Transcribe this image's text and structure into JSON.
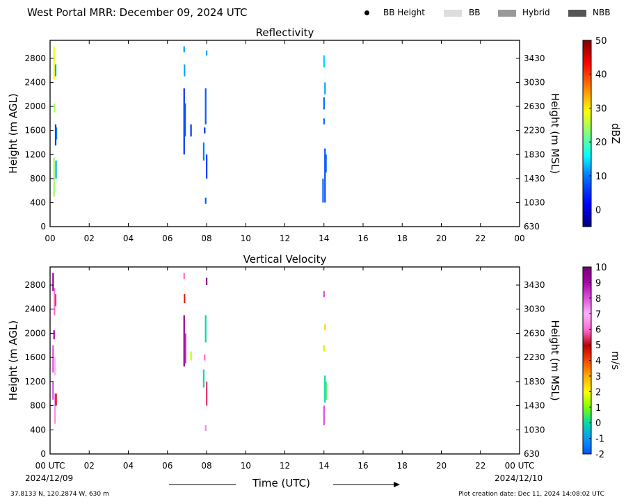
{
  "header": {
    "title": "West Portal MRR:  December 09, 2024 UTC"
  },
  "legend": {
    "items": [
      {
        "label": "BB Height",
        "icon": "black-dot",
        "color": "#000000"
      },
      {
        "label": "BB",
        "icon": "swatch",
        "color": "#dddddd"
      },
      {
        "label": "Hybrid",
        "icon": "swatch",
        "color": "#999999"
      },
      {
        "label": "NBB",
        "icon": "swatch",
        "color": "#555555"
      }
    ]
  },
  "chart_data": [
    {
      "type": "heatmap",
      "title": "Reflectivity",
      "ylabel": "Height (m AGL)",
      "y2label": "Height (m MSL)",
      "xlim": [
        0,
        24
      ],
      "ylim": [
        0,
        3100
      ],
      "x_ticks": [
        "00",
        "02",
        "04",
        "06",
        "08",
        "10",
        "12",
        "14",
        "16",
        "18",
        "20",
        "22",
        "00"
      ],
      "y_ticks": [
        "0",
        "400",
        "800",
        "1200",
        "1600",
        "2000",
        "2400",
        "2800"
      ],
      "y2_ticks": [
        "630",
        "1030",
        "1430",
        "1830",
        "2230",
        "2630",
        "3030",
        "3430"
      ],
      "colorbar": {
        "label": "dBZ",
        "range": [
          -5,
          50
        ],
        "ticks": [
          "0",
          "10",
          "20",
          "30",
          "40",
          "50"
        ]
      },
      "streaks": [
        {
          "x": 0.2,
          "y0": 2450,
          "y1": 3000,
          "value": 28
        },
        {
          "x": 0.28,
          "y0": 2500,
          "y1": 2700,
          "value": 12
        },
        {
          "x": 0.22,
          "y0": 1900,
          "y1": 2050,
          "value": 24
        },
        {
          "x": 0.28,
          "y0": 1350,
          "y1": 1700,
          "value": 5
        },
        {
          "x": 0.32,
          "y0": 1450,
          "y1": 1650,
          "value": 10
        },
        {
          "x": 0.2,
          "y0": 500,
          "y1": 1150,
          "value": 24
        },
        {
          "x": 0.3,
          "y0": 800,
          "y1": 1100,
          "value": 12
        },
        {
          "x": 6.85,
          "y0": 2900,
          "y1": 3000,
          "value": 12
        },
        {
          "x": 6.87,
          "y0": 2500,
          "y1": 2700,
          "value": 12
        },
        {
          "x": 6.85,
          "y0": 1200,
          "y1": 2300,
          "value": 5
        },
        {
          "x": 6.9,
          "y0": 1500,
          "y1": 2050,
          "value": 8
        },
        {
          "x": 7.2,
          "y0": 1500,
          "y1": 1700,
          "value": 5
        },
        {
          "x": 7.85,
          "y0": 1100,
          "y1": 1400,
          "value": 10
        },
        {
          "x": 7.9,
          "y0": 1550,
          "y1": 1650,
          "value": 5
        },
        {
          "x": 7.95,
          "y0": 1700,
          "y1": 2300,
          "value": 8
        },
        {
          "x": 8.0,
          "y0": 800,
          "y1": 1200,
          "value": 6
        },
        {
          "x": 7.95,
          "y0": 380,
          "y1": 480,
          "value": 8
        },
        {
          "x": 8.0,
          "y0": 2850,
          "y1": 2930,
          "value": 12
        },
        {
          "x": 14.0,
          "y0": 2650,
          "y1": 2850,
          "value": 14
        },
        {
          "x": 14.05,
          "y0": 2200,
          "y1": 2400,
          "value": 12
        },
        {
          "x": 14.0,
          "y0": 1950,
          "y1": 2150,
          "value": 9
        },
        {
          "x": 14.0,
          "y0": 1700,
          "y1": 1800,
          "value": 9
        },
        {
          "x": 13.95,
          "y0": 400,
          "y1": 800,
          "value": 8
        },
        {
          "x": 14.05,
          "y0": 400,
          "y1": 1300,
          "value": 7
        },
        {
          "x": 14.1,
          "y0": 900,
          "y1": 1200,
          "value": 9
        }
      ]
    },
    {
      "type": "heatmap",
      "title": "Vertical Velocity",
      "ylabel": "Height (m AGL)",
      "y2label": "Height (m MSL)",
      "xlim": [
        0,
        24
      ],
      "ylim": [
        0,
        3100
      ],
      "x_ticks": [
        "00 UTC",
        "02",
        "04",
        "06",
        "08",
        "10",
        "12",
        "14",
        "16",
        "18",
        "20",
        "22",
        "00 UTC"
      ],
      "y_ticks": [
        "0",
        "400",
        "800",
        "1200",
        "1600",
        "2000",
        "2400",
        "2800"
      ],
      "y2_ticks": [
        "630",
        "1030",
        "1430",
        "1830",
        "2230",
        "2630",
        "3030",
        "3430"
      ],
      "colorbar": {
        "label": "m/s",
        "range": [
          -2,
          10
        ],
        "ticks": [
          "-2",
          "-1",
          "0",
          "1",
          "2",
          "3",
          "4",
          "5",
          "6",
          "7",
          "8",
          "9",
          "10"
        ]
      },
      "streaks": [
        {
          "x": 0.15,
          "y0": 2700,
          "y1": 3000,
          "value": 9.5
        },
        {
          "x": 0.22,
          "y0": 2300,
          "y1": 2750,
          "value": 6
        },
        {
          "x": 0.28,
          "y0": 2450,
          "y1": 2650,
          "value": 5.5
        },
        {
          "x": 0.2,
          "y0": 1900,
          "y1": 2050,
          "value": 9
        },
        {
          "x": 0.15,
          "y0": 1350,
          "y1": 1800,
          "value": 8
        },
        {
          "x": 0.25,
          "y0": 1300,
          "y1": 1600,
          "value": 7
        },
        {
          "x": 0.15,
          "y0": 900,
          "y1": 1200,
          "value": 8
        },
        {
          "x": 0.25,
          "y0": 500,
          "y1": 1000,
          "value": 6.5
        },
        {
          "x": 0.3,
          "y0": 800,
          "y1": 1000,
          "value": 5
        },
        {
          "x": 6.85,
          "y0": 2900,
          "y1": 3000,
          "value": 6
        },
        {
          "x": 6.87,
          "y0": 2500,
          "y1": 2650,
          "value": 4.5
        },
        {
          "x": 6.85,
          "y0": 1450,
          "y1": 2300,
          "value": 9.5
        },
        {
          "x": 6.92,
          "y0": 1500,
          "y1": 2000,
          "value": 8.5
        },
        {
          "x": 7.2,
          "y0": 1550,
          "y1": 1700,
          "value": 1.5
        },
        {
          "x": 7.85,
          "y0": 1100,
          "y1": 1400,
          "value": 0
        },
        {
          "x": 7.9,
          "y0": 1550,
          "y1": 1650,
          "value": 6
        },
        {
          "x": 7.95,
          "y0": 1850,
          "y1": 2300,
          "value": 0
        },
        {
          "x": 8.0,
          "y0": 800,
          "y1": 1200,
          "value": 5.5
        },
        {
          "x": 7.95,
          "y0": 380,
          "y1": 480,
          "value": 7.5
        },
        {
          "x": 8.0,
          "y0": 2800,
          "y1": 2920,
          "value": 9.5
        },
        {
          "x": 14.0,
          "y0": 2600,
          "y1": 2700,
          "value": 8
        },
        {
          "x": 14.05,
          "y0": 2050,
          "y1": 2150,
          "value": 2.5
        },
        {
          "x": 14.0,
          "y0": 1700,
          "y1": 1800,
          "value": 1.5
        },
        {
          "x": 14.0,
          "y0": 480,
          "y1": 800,
          "value": 8
        },
        {
          "x": 14.05,
          "y0": 850,
          "y1": 1300,
          "value": 0
        },
        {
          "x": 14.1,
          "y0": 900,
          "y1": 1200,
          "value": 0.5
        }
      ]
    }
  ],
  "x_axis": {
    "title": "Time (UTC)",
    "start_date": "2024/12/09",
    "end_date": "2024/12/10"
  },
  "footer": {
    "location": "37.8133 N, 120.2874 W, 630 m",
    "created": "Plot creation date: Dec 11, 2024 14:08:02 UTC"
  }
}
